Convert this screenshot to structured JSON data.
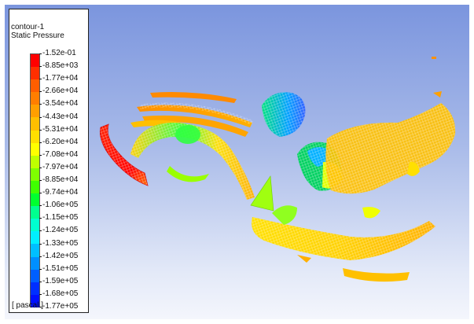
{
  "contour": {
    "name": "contour-1",
    "variable": "Static Pressure",
    "unit": "[ pascal ]",
    "levels": [
      {
        "label": "-1.52e-01",
        "color": "#ff0000"
      },
      {
        "label": "-8.85e+03",
        "color": "#ff2f00"
      },
      {
        "label": "-1.77e+04",
        "color": "#ff5e00"
      },
      {
        "label": "-2.66e+04",
        "color": "#ff7e00"
      },
      {
        "label": "-3.54e+04",
        "color": "#ff9f00"
      },
      {
        "label": "-4.43e+04",
        "color": "#ffbf00"
      },
      {
        "label": "-5.31e+04",
        "color": "#ffdf00"
      },
      {
        "label": "-6.20e+04",
        "color": "#ffff00"
      },
      {
        "label": "-7.08e+04",
        "color": "#bfff00"
      },
      {
        "label": "-7.97e+04",
        "color": "#7fff00"
      },
      {
        "label": "-8.85e+04",
        "color": "#3fff00"
      },
      {
        "label": "-9.74e+04",
        "color": "#00ff2f"
      },
      {
        "label": "-1.06e+05",
        "color": "#00ff8f"
      },
      {
        "label": "-1.15e+05",
        "color": "#00ffcf"
      },
      {
        "label": "-1.24e+05",
        "color": "#00efff"
      },
      {
        "label": "-1.33e+05",
        "color": "#00bfff"
      },
      {
        "label": "-1.42e+05",
        "color": "#008fff"
      },
      {
        "label": "-1.51e+05",
        "color": "#005fff"
      },
      {
        "label": "-1.59e+05",
        "color": "#002fff"
      },
      {
        "label": "-1.68e+05",
        "color": "#0010ff"
      },
      {
        "label": "-1.77e+05",
        "color": "#0000ff"
      }
    ]
  }
}
